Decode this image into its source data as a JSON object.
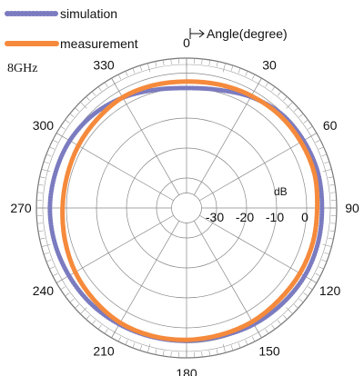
{
  "chart_data": {
    "type": "polar-line",
    "frequency_label": "8GHz",
    "angle_axis_label": "Angle(degree)",
    "radial_unit_label": "dB",
    "angle_ticks": [
      0,
      30,
      60,
      90,
      120,
      150,
      180,
      210,
      240,
      270,
      300,
      330
    ],
    "radial_ticks": [
      -30,
      -20,
      -10,
      0
    ],
    "rlim": [
      -40,
      10
    ],
    "angle_step_deg": 15,
    "series": [
      {
        "name": "simulation",
        "color": "#7B7BC0",
        "angles": [
          0,
          15,
          30,
          45,
          60,
          75,
          90,
          105,
          120,
          135,
          150,
          165,
          180,
          195,
          210,
          225,
          240,
          255,
          270,
          285,
          300,
          315,
          330,
          345
        ],
        "values": [
          0.0,
          0.8,
          2.8,
          4.5,
          5.0,
          5.3,
          5.1,
          5.3,
          5.4,
          5.1,
          4.8,
          4.3,
          4.3,
          4.5,
          4.8,
          5.1,
          5.2,
          5.4,
          5.5,
          5.2,
          4.9,
          4.0,
          2.5,
          0.8
        ]
      },
      {
        "name": "measurement",
        "color": "#F58A3C",
        "angles": [
          0,
          15,
          30,
          45,
          60,
          75,
          90,
          105,
          120,
          135,
          150,
          165,
          180,
          195,
          210,
          225,
          240,
          255,
          270,
          285,
          300,
          315,
          330,
          345
        ],
        "values": [
          2.2,
          2.6,
          3.2,
          3.8,
          4.0,
          4.1,
          3.5,
          3.6,
          3.6,
          3.5,
          3.8,
          3.8,
          4.0,
          4.2,
          4.2,
          3.5,
          2.8,
          1.9,
          1.3,
          1.2,
          1.6,
          2.0,
          2.6,
          2.4
        ]
      }
    ]
  }
}
